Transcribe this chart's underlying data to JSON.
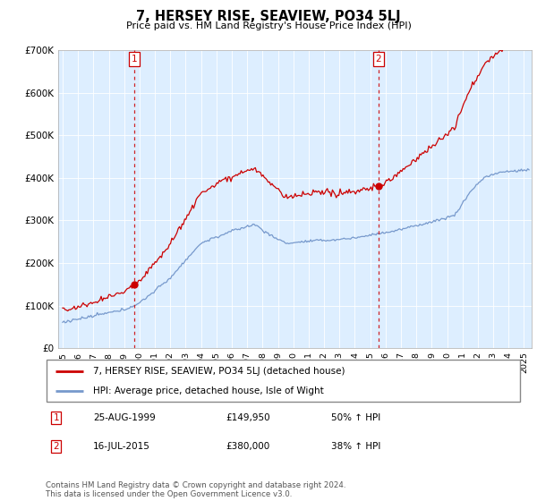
{
  "title": "7, HERSEY RISE, SEAVIEW, PO34 5LJ",
  "subtitle": "Price paid vs. HM Land Registry's House Price Index (HPI)",
  "sale1_date": "25-AUG-1999",
  "sale1_price": 149950,
  "sale1_label": "£149,950",
  "sale1_pct": "50% ↑ HPI",
  "sale2_date": "16-JUL-2015",
  "sale2_price": 380000,
  "sale2_label": "£380,000",
  "sale2_pct": "38% ↑ HPI",
  "legend_label1": "7, HERSEY RISE, SEAVIEW, PO34 5LJ (detached house)",
  "legend_label2": "HPI: Average price, detached house, Isle of Wight",
  "footer": "Contains HM Land Registry data © Crown copyright and database right 2024.\nThis data is licensed under the Open Government Licence v3.0.",
  "property_color": "#cc0000",
  "hpi_color": "#7799cc",
  "dashed_line_color": "#cc0000",
  "chart_bg": "#ddeeff",
  "ylim": [
    0,
    700000
  ],
  "yticks": [
    0,
    100000,
    200000,
    300000,
    400000,
    500000,
    600000,
    700000
  ],
  "ytick_labels": [
    "£0",
    "£100K",
    "£200K",
    "£300K",
    "£400K",
    "£500K",
    "£600K",
    "£700K"
  ],
  "xstart": 1994.7,
  "xend": 2025.5,
  "sale1_x": 1999.65,
  "sale2_x": 2015.54
}
